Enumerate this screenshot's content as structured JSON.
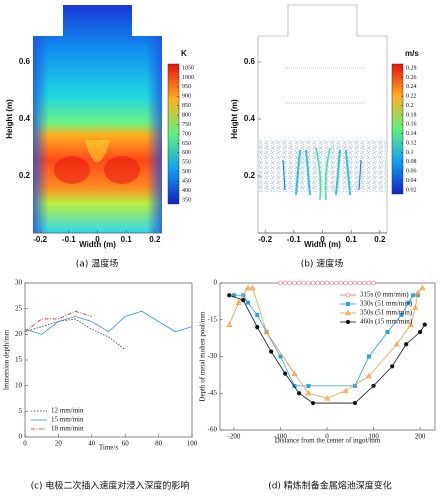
{
  "chart_data": [
    {
      "type": "contour",
      "xlabel": "Width (m)",
      "ylabel": "Height (m)",
      "caption": "(a) 温度场",
      "xlim": [
        -0.225,
        0.225
      ],
      "ylim": [
        0,
        0.8
      ],
      "xticks": [
        -0.2,
        -0.1,
        0,
        0.1,
        0.2
      ],
      "yticks": [
        0.2,
        0.4,
        0.6
      ],
      "colorbar_label": "K",
      "clim": [
        350,
        1050
      ],
      "colorbar_ticks": [
        350,
        400,
        450,
        500,
        550,
        600,
        650,
        700,
        750,
        800,
        850,
        900,
        950,
        1000,
        1050
      ]
    },
    {
      "type": "contour",
      "xlabel": "Width (m)",
      "ylabel": "Height (m)",
      "caption": "(b) 速度场",
      "xlim": [
        -0.225,
        0.225
      ],
      "ylim": [
        0,
        0.8
      ],
      "xticks": [
        -0.2,
        -0.1,
        0,
        0.1,
        0.2
      ],
      "yticks": [
        0.2,
        0.4,
        0.6
      ],
      "colorbar_label": "m/s",
      "clim": [
        0.02,
        0.28
      ],
      "colorbar_ticks": [
        0.02,
        0.04,
        0.06,
        0.08,
        0.1,
        0.12,
        0.14,
        0.16,
        0.18,
        0.2,
        0.22,
        0.24,
        0.26,
        0.28
      ]
    },
    {
      "type": "line",
      "xlabel": "Time/s",
      "ylabel": "Immersion depth/mm",
      "caption": "(c) 电极二次插入速度对浸入深度的影响",
      "xlim": [
        0,
        100
      ],
      "ylim": [
        0,
        30
      ],
      "xticks": [
        0,
        20,
        40,
        60,
        80,
        100
      ],
      "yticks": [
        0,
        5,
        10,
        15,
        20,
        25,
        30
      ],
      "legend": "lower left",
      "series": [
        {
          "name": "12 mm/min",
          "color": "#333333",
          "dash": "dotted",
          "x": [
            0,
            10,
            20,
            30,
            40,
            50,
            60
          ],
          "values": [
            20.5,
            21.5,
            22.5,
            23,
            21,
            19.5,
            17
          ]
        },
        {
          "name": "15 mm/min",
          "color": "#3a8fd8",
          "dash": "solid",
          "x": [
            0,
            10,
            20,
            30,
            40,
            50,
            60,
            70,
            80,
            90,
            100
          ],
          "values": [
            21,
            20,
            22.5,
            23.5,
            22.5,
            20.5,
            23.5,
            24.5,
            22.5,
            20.5,
            21.5
          ]
        },
        {
          "name": "18 mm/min",
          "color": "#d02020",
          "dash": "dashdot",
          "x": [
            0,
            10,
            20,
            30,
            40
          ],
          "values": [
            20.5,
            23,
            23,
            24.5,
            23.5
          ]
        }
      ]
    },
    {
      "type": "line",
      "xlabel": "Distance from the center of ingot/mm",
      "ylabel": "Depth of metal molten pool/mm",
      "caption": "(d) 精炼制备金属熔池深度变化",
      "xlim": [
        -230,
        232
      ],
      "ylim": [
        -60,
        0
      ],
      "xticks": [
        -200,
        -100,
        0,
        100,
        200
      ],
      "yticks": [
        0,
        -15,
        -30,
        -45,
        -60
      ],
      "legend": "upper right",
      "series": [
        {
          "name": "315s (0 mm/min)",
          "color": "#f06080",
          "dash": "solid",
          "marker": "circle-open",
          "x": [
            -100,
            -90,
            -80,
            -70,
            -60,
            -50,
            -40,
            -30,
            -20,
            -10,
            0,
            10,
            20,
            30,
            40,
            50,
            60,
            70,
            80,
            90,
            100
          ],
          "values": [
            0,
            0,
            0,
            0,
            0,
            0,
            0,
            0,
            0,
            0,
            0,
            0,
            0,
            0,
            0,
            0,
            0,
            0,
            0,
            0,
            0
          ]
        },
        {
          "name": "330s (51 mm/min)",
          "color": "#2aa0e0",
          "dash": "solid",
          "marker": "square",
          "x": [
            -200,
            -180,
            -170,
            -150,
            -130,
            -100,
            -70,
            -40,
            60,
            90,
            130,
            160,
            175,
            185,
            195
          ],
          "values": [
            -5,
            -5,
            -8,
            -13,
            -20,
            -30,
            -42,
            -42,
            -42,
            -30,
            -20,
            -13,
            -8,
            -5,
            -5
          ]
        },
        {
          "name": "350s (51 mm/min)",
          "color": "#f0a040",
          "dash": "solid",
          "marker": "triangle",
          "x": [
            -210,
            -190,
            -170,
            -160,
            -130,
            -70,
            -40,
            0,
            40,
            90,
            150,
            180,
            190,
            195,
            205
          ],
          "values": [
            -17,
            -8,
            -2,
            -2,
            -20,
            -37,
            -45,
            -47,
            -44,
            -38,
            -25,
            -17,
            -10,
            -4,
            -2
          ]
        },
        {
          "name": "460s (15 mm/min)",
          "color": "#111111",
          "dash": "solid",
          "marker": "circle",
          "x": [
            -210,
            -180,
            -150,
            -120,
            -90,
            -60,
            -30,
            60,
            100,
            140,
            170,
            200,
            210
          ],
          "values": [
            -5,
            -7,
            -18,
            -28,
            -37,
            -45,
            -49,
            -49,
            -42,
            -34,
            -25,
            -20,
            -17
          ]
        }
      ]
    }
  ]
}
